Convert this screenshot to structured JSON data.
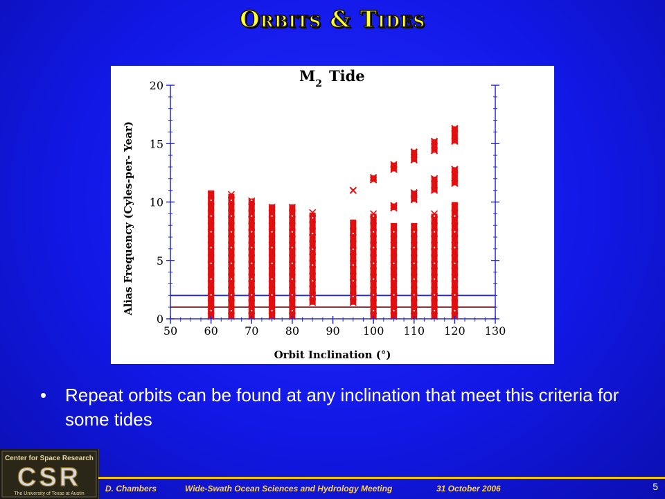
{
  "slide": {
    "title": "Orbits & Tides",
    "bullet": "Repeat orbits can be found at any inclination that meet this criteria for some tides",
    "bullet_marker": "•",
    "page_number": "5"
  },
  "footer": {
    "author": "D. Chambers",
    "meeting": "Wide-Swath Ocean Sciences and Hydrology Meeting",
    "date": "31 October 2006"
  },
  "logo": {
    "line1": "Center for Space Research",
    "letters": "CSR",
    "line2": "The University of Texas at Austin"
  },
  "chart_data": {
    "type": "scatter",
    "title_main": "M",
    "title_sub": "2",
    "title_rest": "Tide",
    "xlabel": "Orbit Inclination (°)",
    "ylabel": "Alias Frequency (Cyles-per- Year)",
    "xlim": [
      50,
      130
    ],
    "ylim": [
      0,
      20
    ],
    "x_ticks": [
      50,
      60,
      70,
      80,
      90,
      100,
      110,
      120,
      130
    ],
    "y_ticks": [
      0,
      5,
      10,
      15,
      20
    ],
    "threshold_lines": [
      {
        "name": "upper",
        "y": 2.0,
        "color": "#2228d8"
      },
      {
        "name": "lower",
        "y": 1.0,
        "color": "#8b1a1a"
      }
    ],
    "marker_color": "#e01010",
    "series": [
      {
        "x": 60,
        "min": 0,
        "max": 11.0
      },
      {
        "x": 65,
        "min": 0,
        "max": 10.7
      },
      {
        "x": 70,
        "min": 0,
        "max": 10.3
      },
      {
        "x": 75,
        "min": 0,
        "max": 9.8
      },
      {
        "x": 80,
        "min": 0,
        "max": 9.8
      },
      {
        "x": 85,
        "min": 1.2,
        "max": 9.1
      },
      {
        "x": 95,
        "min": 1.2,
        "max": 8.5,
        "extra": [
          11.0
        ]
      },
      {
        "x": 100,
        "min": 0,
        "max": 9.0,
        "extra": [
          11.9,
          12.1
        ]
      },
      {
        "x": 105,
        "min": 0,
        "max": 8.2,
        "extra": [
          9.5,
          9.7,
          12.8,
          13.2
        ]
      },
      {
        "x": 110,
        "min": 0,
        "max": 8.2,
        "extra": [
          10.2,
          10.8,
          13.6,
          14.3
        ]
      },
      {
        "x": 115,
        "min": 0,
        "max": 9.0,
        "extra": [
          11.0,
          12.0,
          14.4,
          15.2
        ]
      },
      {
        "x": 120,
        "min": 0,
        "max": 10.0,
        "extra": [
          11.6,
          12.8,
          15.2,
          16.3
        ]
      }
    ]
  }
}
